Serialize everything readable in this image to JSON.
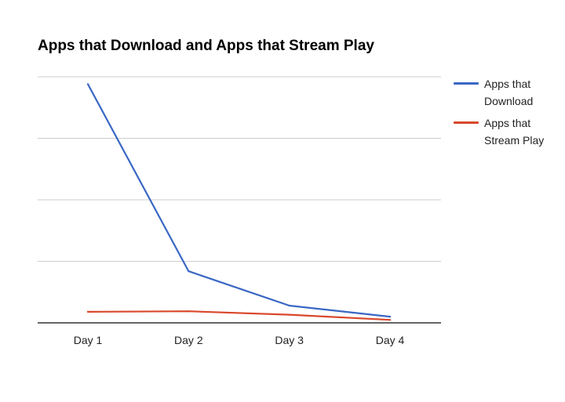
{
  "colors": {
    "download": "#3a67c4",
    "stream": "#d9482b",
    "grid": "#cccccc",
    "axis": "#333333"
  },
  "chart_data": {
    "type": "line",
    "title": "Apps that Download and Apps that Stream Play",
    "xlabel": "",
    "ylabel": "",
    "categories": [
      "Day 1",
      "Day 2",
      "Day 3",
      "Day 4"
    ],
    "ylim": [
      0,
      100
    ],
    "grid": true,
    "y_tick_labels_shown": false,
    "legend_position": "right",
    "series": [
      {
        "name": "Apps that Download",
        "color": "#3a67c4",
        "values": [
          97,
          21,
          7,
          2.5
        ]
      },
      {
        "name": "Apps that Stream Play",
        "color": "#d9482b",
        "values": [
          4.5,
          4.7,
          3.3,
          1.2
        ]
      }
    ]
  }
}
